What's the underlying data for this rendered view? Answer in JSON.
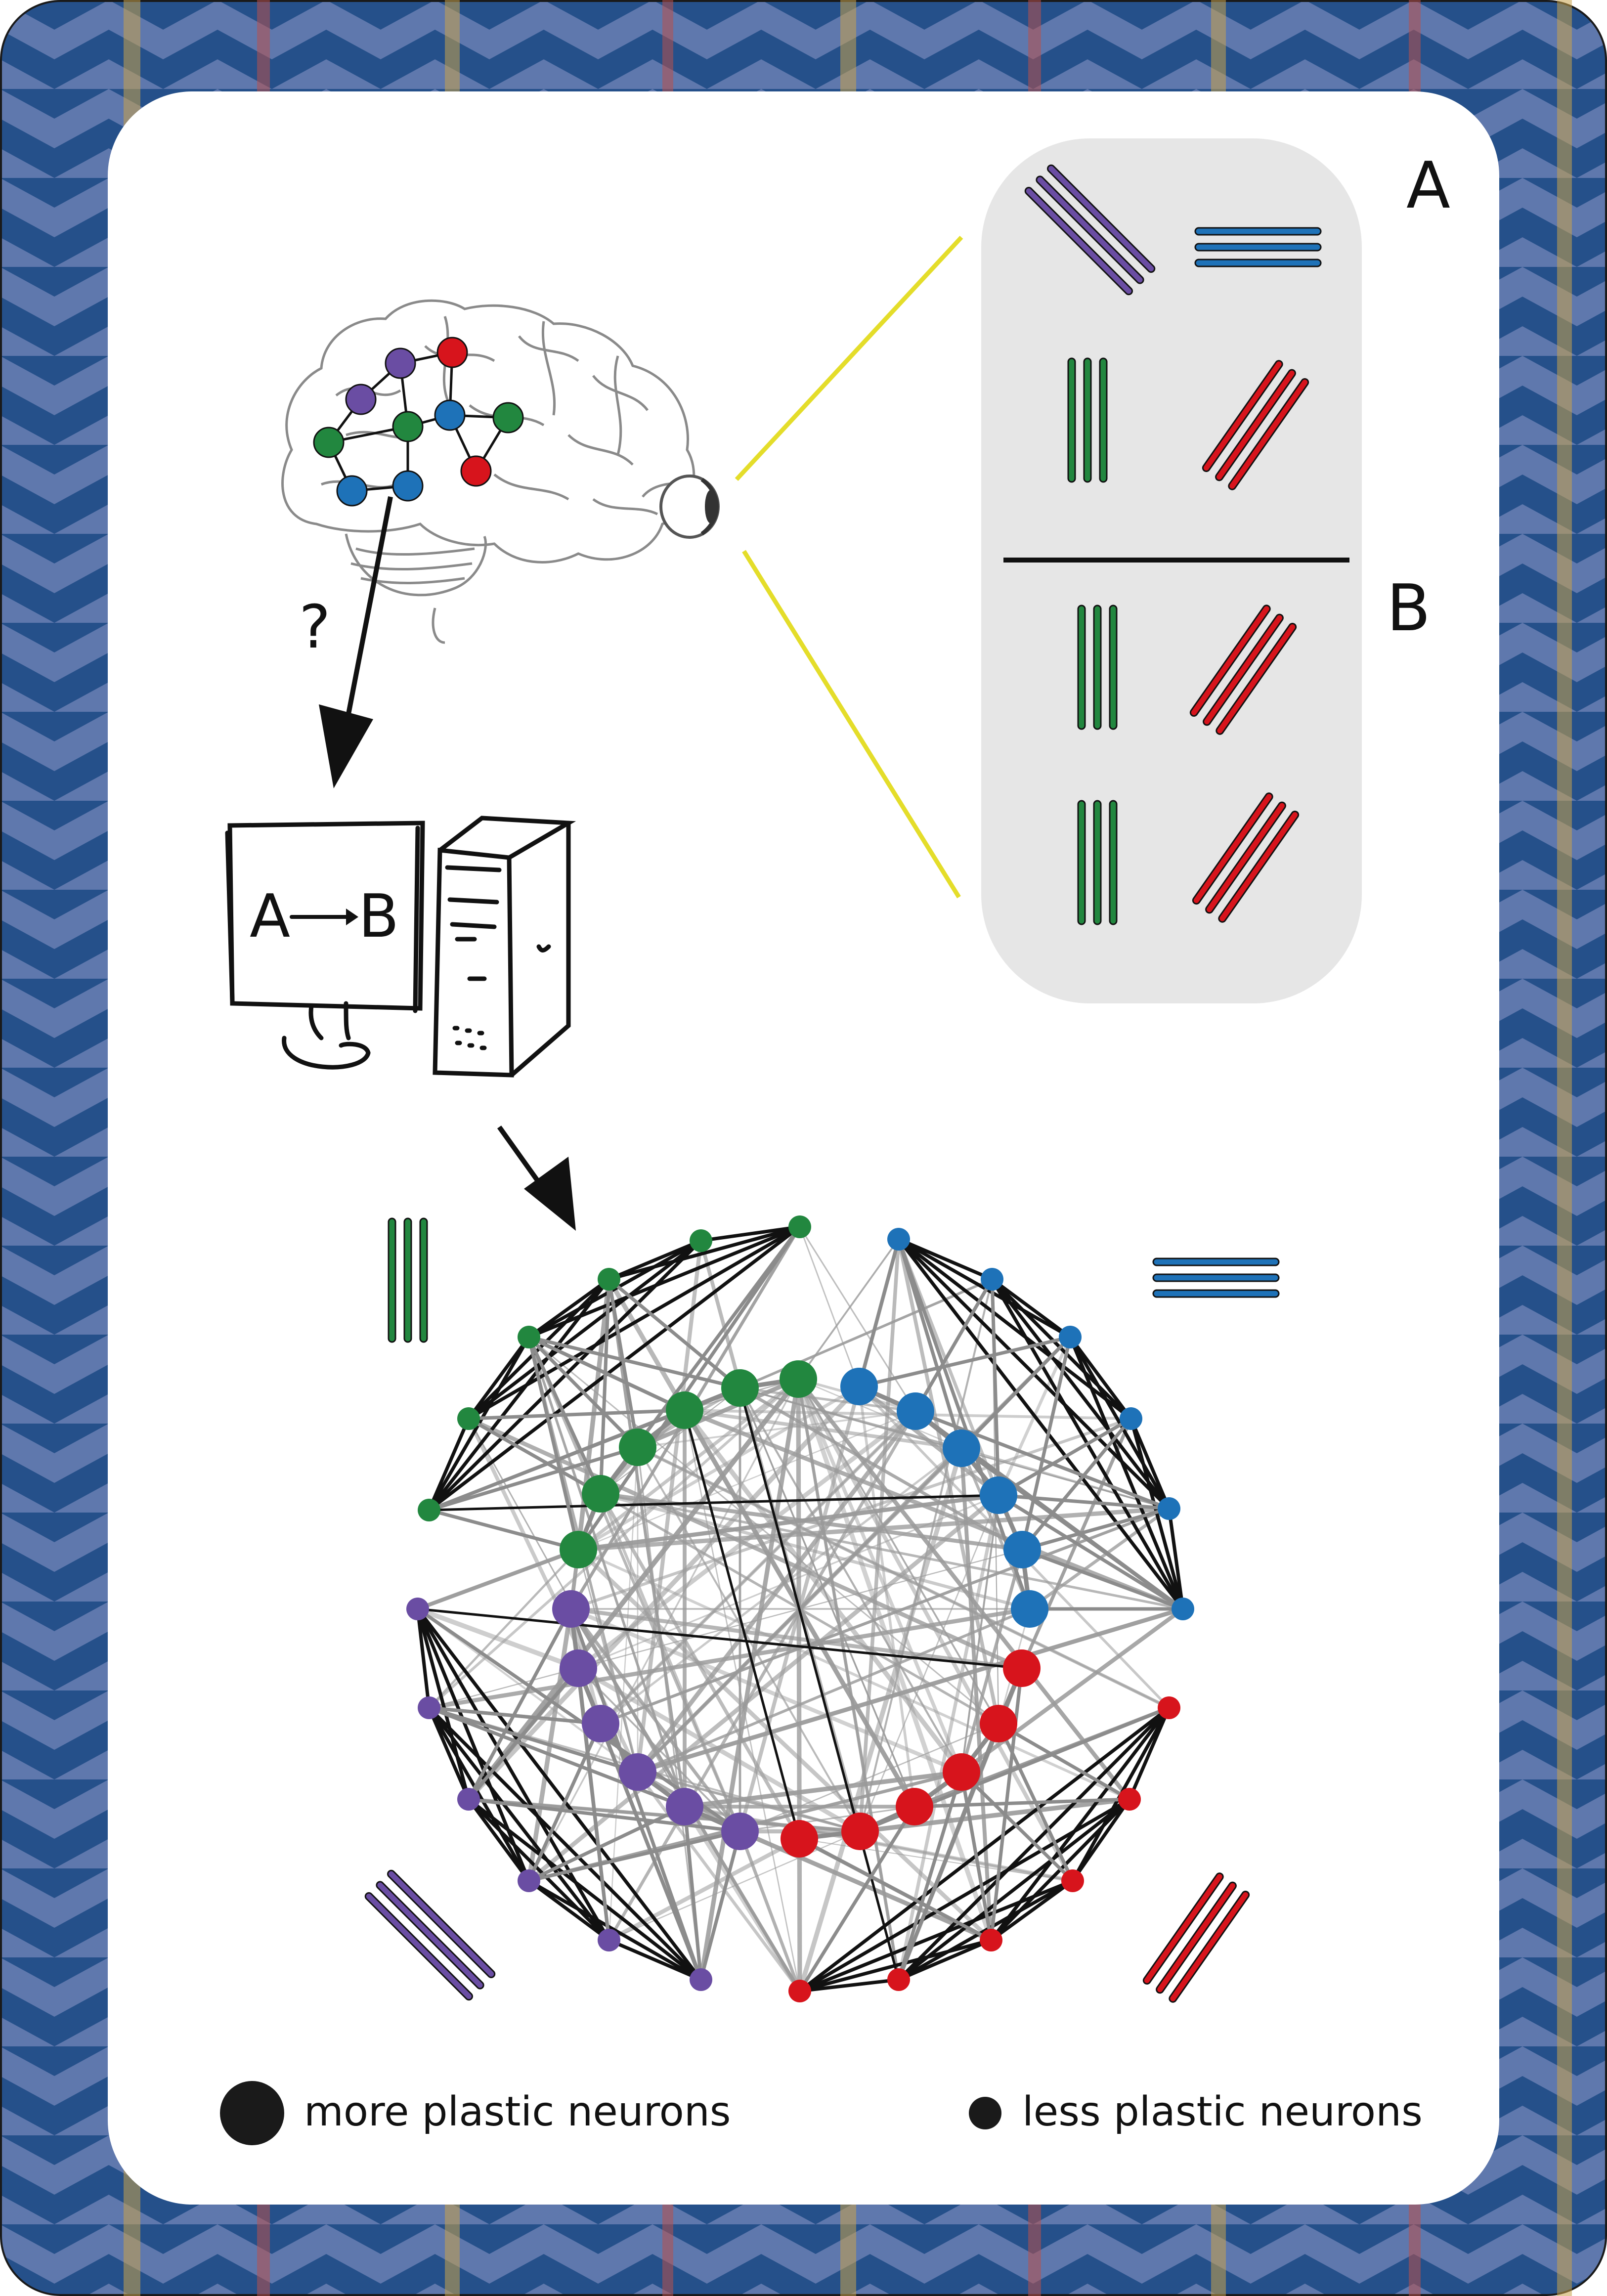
{
  "panel": {
    "set_a_label": "A",
    "set_b_label": "B"
  },
  "task_arrow": {
    "question_mark": "?"
  },
  "computer": {
    "screen_text_from": "A",
    "screen_text_to": "B"
  },
  "legend": {
    "large_label": "more plastic neurons",
    "small_label": "less plastic neurons"
  },
  "colors": {
    "green": "#22873f",
    "blue": "#1e72b8",
    "red": "#d7141c",
    "purple": "#6a4da3",
    "card_blue": "#25508a",
    "card_light": "#5f78ad",
    "panel_grey": "#e6e6e6",
    "connector_yellow": "#e4dd2a"
  },
  "icons": [
    "brain-icon",
    "eye-icon",
    "monitor-icon",
    "computer-tower-icon",
    "grating-icon"
  ]
}
